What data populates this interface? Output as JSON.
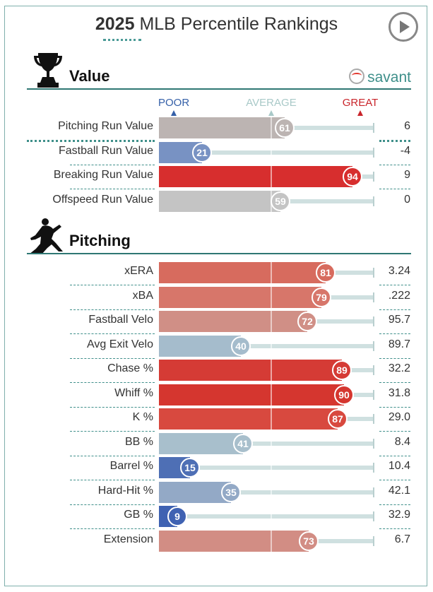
{
  "page": {
    "title_year": "2025",
    "title_rest": "MLB Percentile Rankings"
  },
  "legend": {
    "poor": "POOR",
    "average": "AVERAGE",
    "great": "GREAT"
  },
  "colors": {
    "poor": "#3560a8",
    "average": "#c0c0c0",
    "great": "#d22d2d",
    "accent": "#3e8f8a"
  },
  "sections": [
    {
      "label": "Value",
      "icon": "trophy-icon",
      "badge": "savant"
    },
    {
      "label": "Pitching",
      "icon": "pitcher-icon"
    }
  ],
  "chart_data": {
    "type": "bar",
    "xlim": [
      0,
      100
    ],
    "groups": [
      {
        "name": "Value",
        "categories": [
          "Pitching Run Value",
          "Fastball Run Value",
          "Breaking Run Value",
          "Offspeed Run Value"
        ],
        "percentiles": [
          61,
          21,
          94,
          59
        ],
        "values": [
          "6",
          "-4",
          "9",
          "0"
        ],
        "bar_colors": [
          "#bcb4b2",
          "#7892c3",
          "#d72e2e",
          "#c4c4c4"
        ]
      },
      {
        "name": "Pitching",
        "categories": [
          "xERA",
          "xBA",
          "Fastball Velo",
          "Avg Exit Velo",
          "Chase %",
          "Whiff %",
          "K %",
          "BB %",
          "Barrel %",
          "Hard-Hit %",
          "GB %",
          "Extension"
        ],
        "percentiles": [
          81,
          79,
          72,
          40,
          89,
          90,
          87,
          41,
          15,
          35,
          9,
          73
        ],
        "values": [
          "3.24",
          ".222",
          "95.7",
          "89.7",
          "32.2",
          "31.8",
          "29.0",
          "8.4",
          "10.4",
          "42.1",
          "32.9",
          "6.7"
        ],
        "bar_colors": [
          "#d76b5e",
          "#d7766a",
          "#d08f86",
          "#a5bccc",
          "#d53b35",
          "#d5362f",
          "#d8493f",
          "#a8bfcc",
          "#4e6fb5",
          "#93a9c6",
          "#3f62b2",
          "#d28d84"
        ]
      }
    ]
  }
}
